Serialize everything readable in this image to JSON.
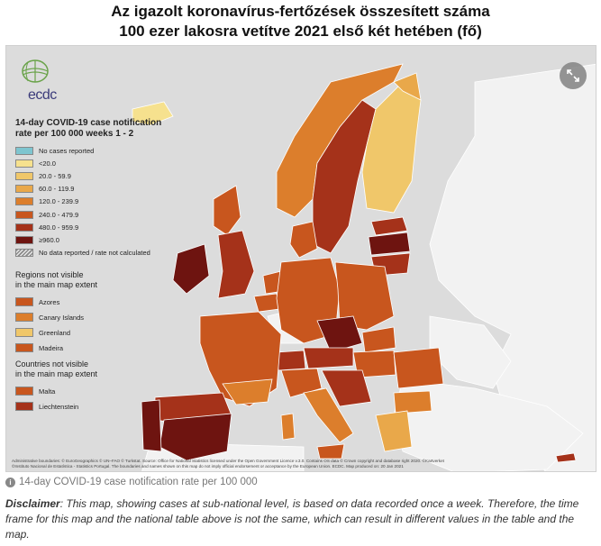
{
  "title": {
    "line1": "Az igazolt koronavírus-fertőzések összesített száma",
    "line2": "100 ezer lakosra vetítve 2021 első két hetében (fő)"
  },
  "logo": {
    "text": "ecdc"
  },
  "legend": {
    "title_line1": "14-day COVID-19 case notification",
    "title_line2": "rate per 100 000 weeks 1 - 2",
    "items": [
      {
        "label": "No cases reported",
        "color": "#7ec5cf"
      },
      {
        "label": "<20.0",
        "color": "#f6e18e"
      },
      {
        "label": "20.0 - 59.9",
        "color": "#f0c76a"
      },
      {
        "label": "60.0 - 119.9",
        "color": "#e9a84a"
      },
      {
        "label": "120.0 - 239.9",
        "color": "#dc7e2c"
      },
      {
        "label": "240.0 - 479.9",
        "color": "#c8561e"
      },
      {
        "label": "480.0 - 959.9",
        "color": "#a5321a"
      },
      {
        "label": "≥960.0",
        "color": "#6e1410"
      },
      {
        "label": "No data reported / rate not calculated",
        "color": "hatch"
      }
    ],
    "regions_title_line1": "Regions not visible",
    "regions_title_line2": "in the main map extent",
    "regions": [
      {
        "label": "Azores",
        "color": "#c8561e"
      },
      {
        "label": "Canary Islands",
        "color": "#dc7e2c"
      },
      {
        "label": "Greenland",
        "color": "#f0c76a"
      },
      {
        "label": "Madeira",
        "color": "#c8561e"
      }
    ],
    "countries_title_line1": "Countries not visible",
    "countries_title_line2": "in the main map extent",
    "countries": [
      {
        "label": "Malta",
        "color": "#c8561e"
      },
      {
        "label": "Liechtenstein",
        "color": "#a5321a"
      }
    ]
  },
  "admin_text": {
    "line1": "Administrative boundaries: © EuroGeographics © UN–FAO © Turkstat. Source: Office for National Statistics licensed under the Open Government Licence v.3.0. Contains OS data © Crown copyright and database right 2020. ©Kartverket",
    "line2": "©Instituto Nacional de Estatística - Statistics Portugal. The boundaries and names shown on this map do not imply official endorsement or acceptance by the European Union. ECDC. Map produced on: 20 Jan 2021"
  },
  "caption": "14-day COVID-19 case notification rate per 100 000",
  "disclaimer": {
    "label": "Disclaimer",
    "text": ": This map, showing cases at sub-national level, is based on data recorded once a week. Therefore, the time frame for this map and the national table above is not the same, which can result in different values in the table and the map."
  },
  "colors": {
    "sea": "#dcdcdc",
    "non_eu": "#f2f2f2",
    "border": "#ffffff"
  }
}
